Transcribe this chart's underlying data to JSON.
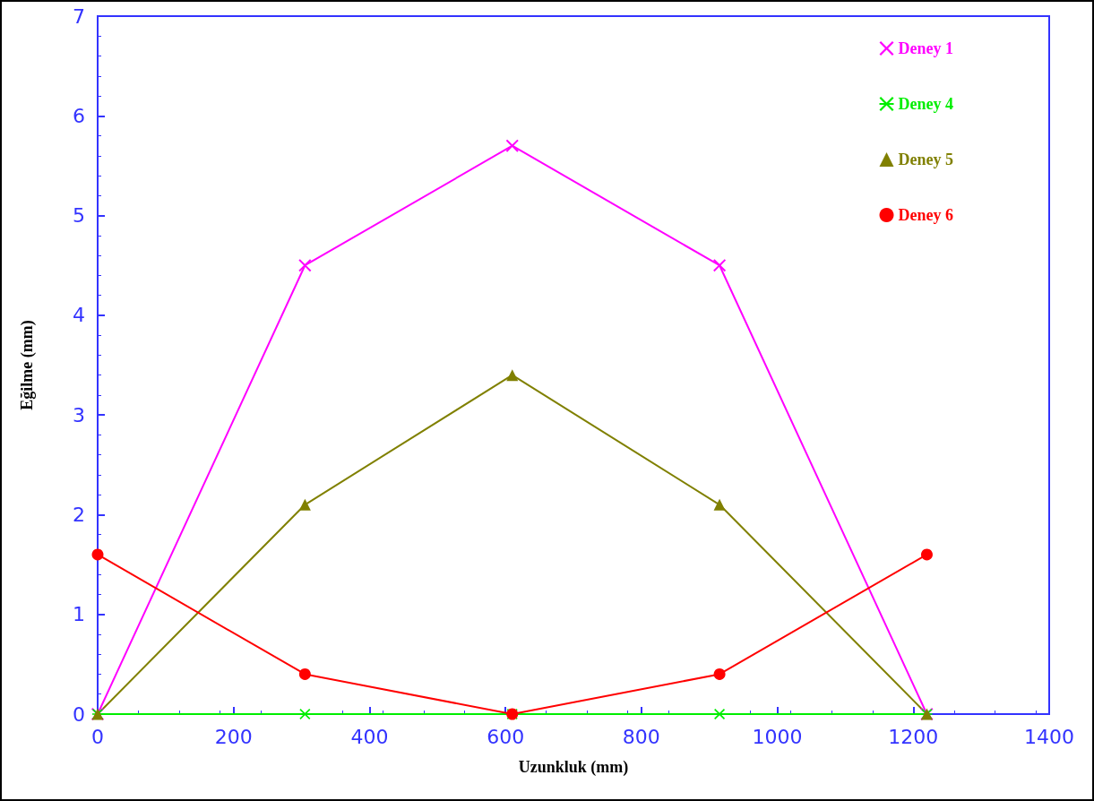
{
  "chart_data": {
    "type": "line",
    "xlabel": "Uzunkluk (mm)",
    "ylabel": "Eğilme (mm)",
    "x": [
      0,
      305,
      610,
      915,
      1220
    ],
    "xlim": [
      0,
      1400
    ],
    "xticks": [
      0,
      200,
      400,
      600,
      800,
      1000,
      1200,
      1400
    ],
    "ylim": [
      0,
      7
    ],
    "yticks": [
      0,
      1,
      2,
      3,
      4,
      5,
      6,
      7
    ],
    "grid": false,
    "legend": "top right",
    "line_style": "solid",
    "series": [
      {
        "name": "Deney 1",
        "color": "#ff00ff",
        "marker": "cross",
        "values": [
          0,
          4.5,
          5.7,
          4.5,
          0
        ]
      },
      {
        "name": "Deney 4",
        "color": "#00ee00",
        "marker": "star",
        "values": [
          0,
          0,
          0,
          0,
          0
        ]
      },
      {
        "name": "Deney 5",
        "color": "#808000",
        "marker": "triangle",
        "values": [
          0,
          2.1,
          3.4,
          2.1,
          0
        ]
      },
      {
        "name": "Deney 6",
        "color": "#ff0000",
        "marker": "circle",
        "values": [
          1.6,
          0.4,
          0,
          0.4,
          1.6
        ]
      }
    ]
  }
}
